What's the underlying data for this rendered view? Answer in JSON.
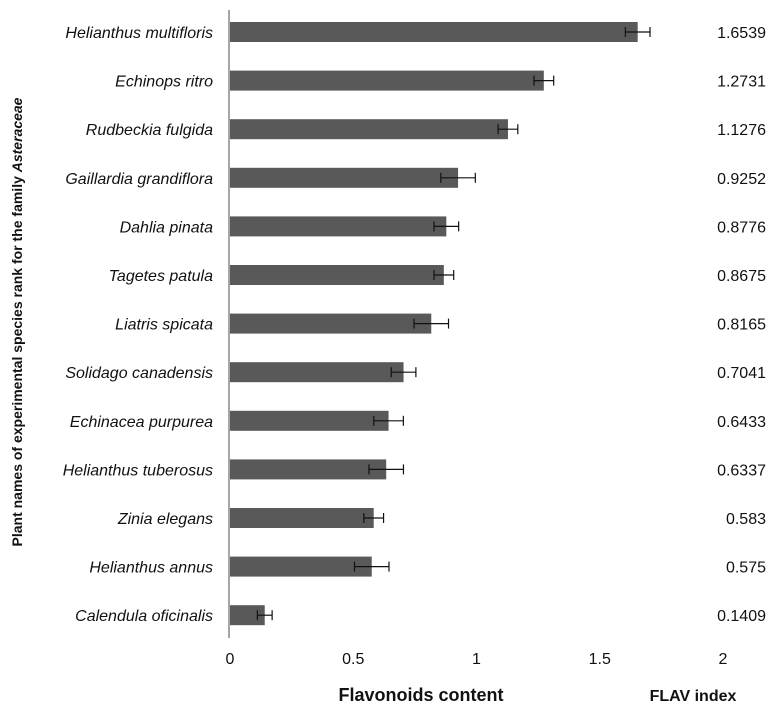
{
  "chart_data": {
    "type": "bar",
    "orientation": "horizontal",
    "categories": [
      "Helianthus multifloris",
      "Echinops ritro",
      "Rudbeckia fulgida",
      "Gaillardia grandiflora",
      "Dahlia pinata",
      "Tagetes patula",
      "Liatris spicata",
      "Solidago canadensis",
      "Echinacea purpurea",
      "Helianthus tuberosus",
      "Zinia elegans",
      "Helianthus annus",
      "Calendula oficinalis"
    ],
    "values": [
      1.6539,
      1.2731,
      1.1276,
      0.9252,
      0.8776,
      0.8675,
      0.8165,
      0.7041,
      0.6433,
      0.6337,
      0.583,
      0.575,
      0.1409
    ],
    "value_labels": [
      "1.6539",
      "1.2731",
      "1.1276",
      "0.9252",
      "0.8776",
      "0.8675",
      "0.8165",
      "0.7041",
      "0.6433",
      "0.6337",
      "0.583",
      "0.575",
      "0.1409"
    ],
    "errors": [
      0.05,
      0.04,
      0.04,
      0.07,
      0.05,
      0.04,
      0.07,
      0.05,
      0.06,
      0.07,
      0.04,
      0.07,
      0.03
    ],
    "xlabel": "Flavonoids content",
    "ylabel": "Plant names of experimental species rank for the family Asteraceae",
    "index_label": "FLAV index",
    "xlim": [
      0,
      2
    ],
    "xticks": [
      "0",
      "0.5",
      "1",
      "1.5",
      "2"
    ],
    "bar_color": "#595959",
    "grid": false
  }
}
